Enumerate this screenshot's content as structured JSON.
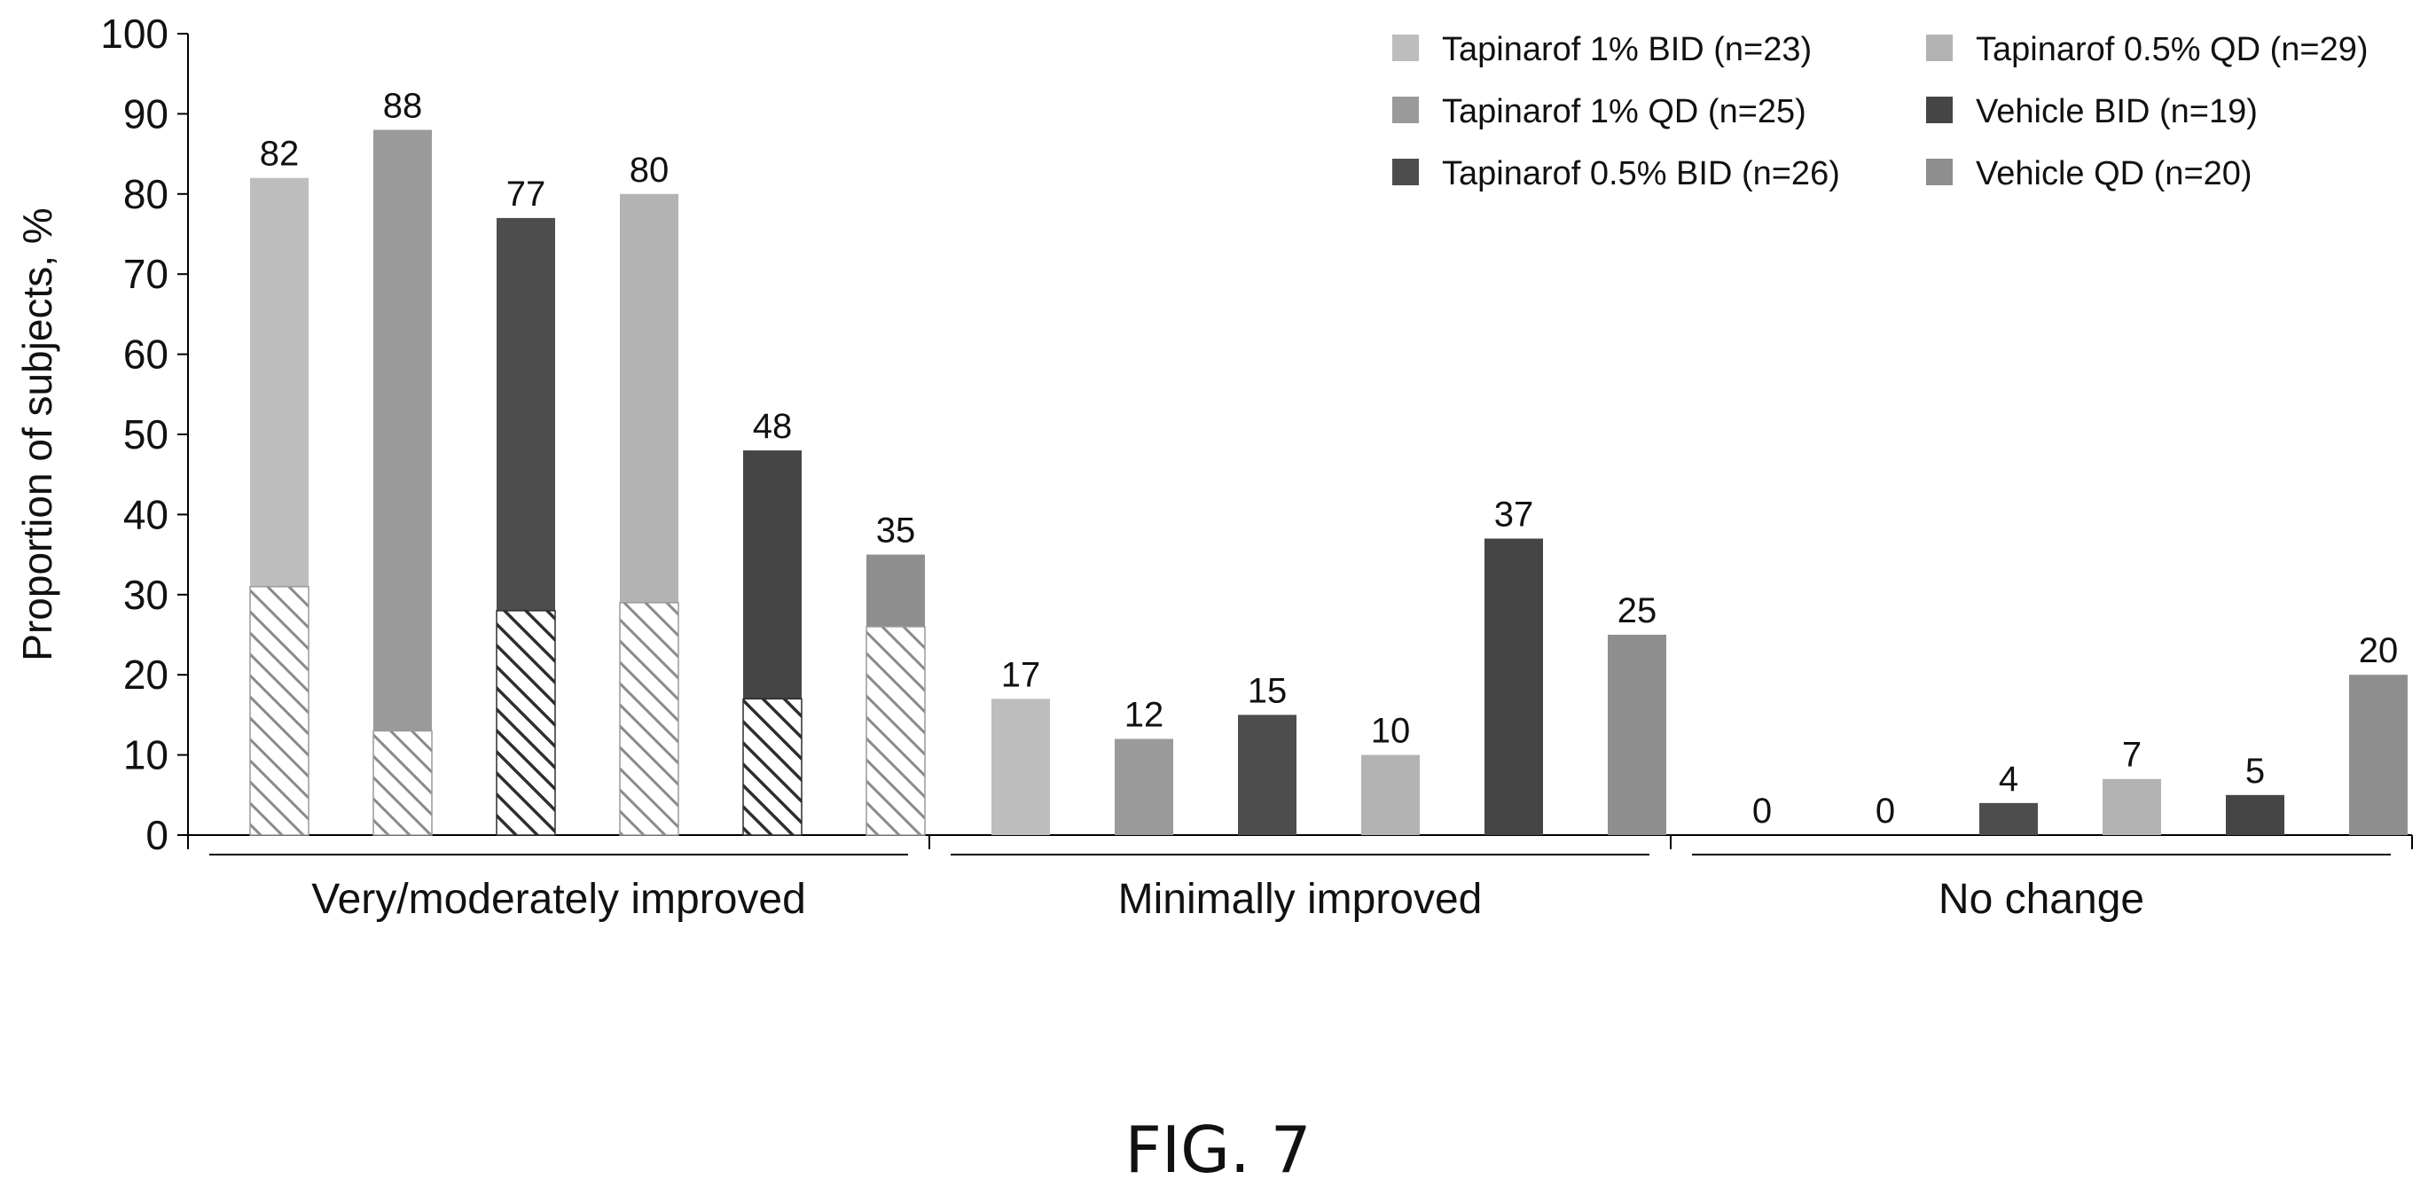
{
  "figure_label": "FIG. 7",
  "chart_data": {
    "type": "bar",
    "title": "",
    "ylabel": "Proportion of subjects, %",
    "xlabel": "",
    "ylim": [
      0,
      100
    ],
    "yticks": [
      0,
      10,
      20,
      30,
      40,
      50,
      60,
      70,
      80,
      90,
      100
    ],
    "grid": false,
    "legend_position": "top-right",
    "categories": [
      "Very/moderately improved",
      "Minimally improved",
      "No change"
    ],
    "series": [
      {
        "name": "Tapinarof 1% BID (n=23)",
        "color": "#bdbdbd",
        "values": [
          82,
          17,
          0
        ],
        "hatched_portion": [
          31,
          null,
          null
        ],
        "hatch_style": "light"
      },
      {
        "name": "Tapinarof 1% QD (n=25)",
        "color": "#9a9a9a",
        "values": [
          88,
          12,
          0
        ],
        "hatched_portion": [
          13,
          null,
          null
        ],
        "hatch_style": "light"
      },
      {
        "name": "Tapinarof 0.5% BID (n=26)",
        "color": "#4d4d4d",
        "values": [
          77,
          15,
          4
        ],
        "hatched_portion": [
          28,
          null,
          null
        ],
        "hatch_style": "dark"
      },
      {
        "name": "Tapinarof 0.5% QD (n=29)",
        "color": "#b3b3b3",
        "values": [
          80,
          10,
          7
        ],
        "hatched_portion": [
          29,
          null,
          null
        ],
        "hatch_style": "light"
      },
      {
        "name": "Vehicle BID (n=19)",
        "color": "#454545",
        "values": [
          48,
          37,
          5
        ],
        "hatched_portion": [
          17,
          null,
          null
        ],
        "hatch_style": "dark"
      },
      {
        "name": "Vehicle QD (n=20)",
        "color": "#8e8e8e",
        "values": [
          35,
          25,
          20
        ],
        "hatched_portion": [
          26,
          null,
          null
        ],
        "hatch_style": "light"
      }
    ],
    "legend_order": [
      0,
      3,
      1,
      4,
      2,
      5
    ]
  }
}
